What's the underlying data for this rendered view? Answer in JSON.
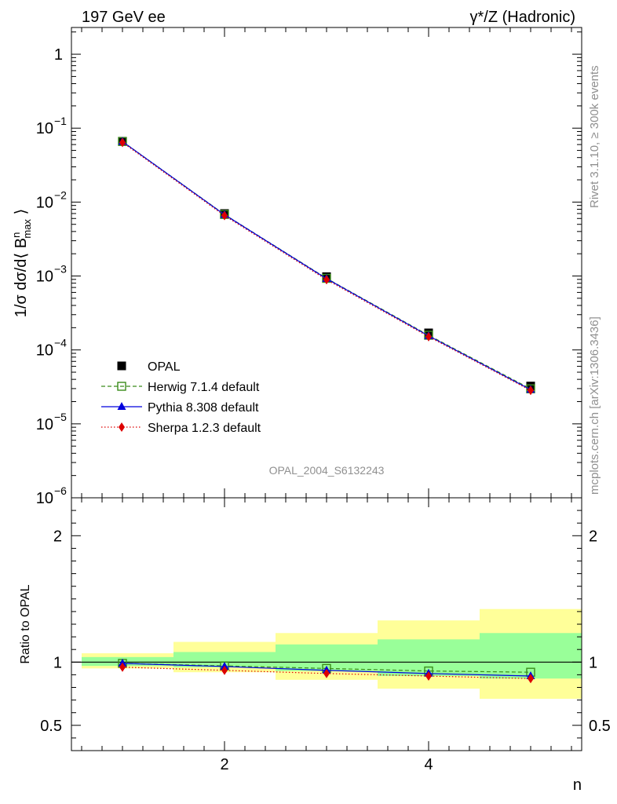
{
  "header": {
    "left": "197 GeV ee",
    "right": "γ*/Z (Hadronic)"
  },
  "side_text": {
    "rivet": "Rivet 3.1.10, ≥ 300k events",
    "mcplots": "mcplots.cern.ch [arXiv:1306.3436]"
  },
  "watermark": "OPAL_2004_S6132243",
  "chart_data": [
    {
      "type": "scatter",
      "panel": "main",
      "ylabel": "1/σ dσ/d⟨ B_max^n ⟩",
      "yscale": "log",
      "ylim": [
        1e-06,
        2.3
      ],
      "xlim": [
        0.5,
        5.5
      ],
      "x": [
        1,
        2,
        3,
        4,
        5
      ],
      "yticks": [
        {
          "base": "10",
          "exp": "−6",
          "value": 1e-06
        },
        {
          "base": "10",
          "exp": "−5",
          "value": 1e-05
        },
        {
          "base": "10",
          "exp": "−4",
          "value": 0.0001
        },
        {
          "base": "10",
          "exp": "−3",
          "value": 0.001
        },
        {
          "base": "10",
          "exp": "−2",
          "value": 0.01
        },
        {
          "base": "10",
          "exp": "−1",
          "value": 0.1
        },
        {
          "base": "1",
          "exp": "",
          "value": 1
        }
      ],
      "legend_position": "lower-left",
      "series": [
        {
          "name": "OPAL",
          "style": "data",
          "color": "#000000",
          "values": [
            0.0665,
            0.007,
            0.00098,
            0.00017,
            3.25e-05
          ]
        },
        {
          "name": "Herwig 7.1.4 default",
          "style": "dashed",
          "marker": "open-square",
          "color": "#3a8c1a",
          "values": [
            0.066,
            0.0068,
            0.00093,
            0.000158,
            2.98e-05
          ]
        },
        {
          "name": "Pythia 8.308 default",
          "style": "solid",
          "marker": "triangle",
          "color": "#0000dd",
          "values": [
            0.0658,
            0.00675,
            0.00092,
            0.000155,
            2.9e-05
          ]
        },
        {
          "name": "Sherpa 1.2.3 default",
          "style": "dotted",
          "marker": "diamond",
          "color": "#dd0000",
          "values": [
            0.064,
            0.00655,
            0.00089,
            0.000151,
            2.83e-05
          ]
        }
      ]
    },
    {
      "type": "scatter",
      "panel": "ratio",
      "ylabel": "Ratio to OPAL",
      "xlabel": "n",
      "ylim": [
        0.3,
        2.3
      ],
      "xlim": [
        0.5,
        5.5
      ],
      "x": [
        1,
        2,
        3,
        4,
        5
      ],
      "xticks": [
        2,
        4
      ],
      "yticks": [
        0.5,
        1,
        2
      ],
      "bands": {
        "yellow_color": "#ffff99",
        "green_color": "#99ff99",
        "bins": [
          {
            "x0": 0.6,
            "x1": 1.5,
            "yellow": [
              0.95,
              1.07
            ],
            "green": [
              0.97,
              1.04
            ]
          },
          {
            "x0": 1.5,
            "x1": 2.5,
            "yellow": [
              0.92,
              1.16
            ],
            "green": [
              0.96,
              1.08
            ]
          },
          {
            "x0": 2.5,
            "x1": 3.5,
            "yellow": [
              0.86,
              1.23
            ],
            "green": [
              0.93,
              1.14
            ]
          },
          {
            "x0": 3.5,
            "x1": 4.5,
            "yellow": [
              0.79,
              1.33
            ],
            "green": [
              0.89,
              1.18
            ]
          },
          {
            "x0": 4.5,
            "x1": 5.5,
            "yellow": [
              0.71,
              1.42
            ],
            "green": [
              0.87,
              1.23
            ]
          }
        ]
      },
      "series": [
        {
          "name": "Herwig 7.1.4 default",
          "style": "dashed",
          "marker": "open-square",
          "color": "#3a8c1a",
          "values": [
            0.99,
            0.97,
            0.95,
            0.93,
            0.92
          ]
        },
        {
          "name": "Pythia 8.308 default",
          "style": "solid",
          "marker": "triangle",
          "color": "#0000dd",
          "values": [
            0.99,
            0.965,
            0.935,
            0.91,
            0.89
          ]
        },
        {
          "name": "Sherpa 1.2.3 default",
          "style": "dotted",
          "marker": "diamond",
          "color": "#dd0000",
          "values": [
            0.96,
            0.935,
            0.91,
            0.89,
            0.87
          ]
        }
      ]
    }
  ]
}
